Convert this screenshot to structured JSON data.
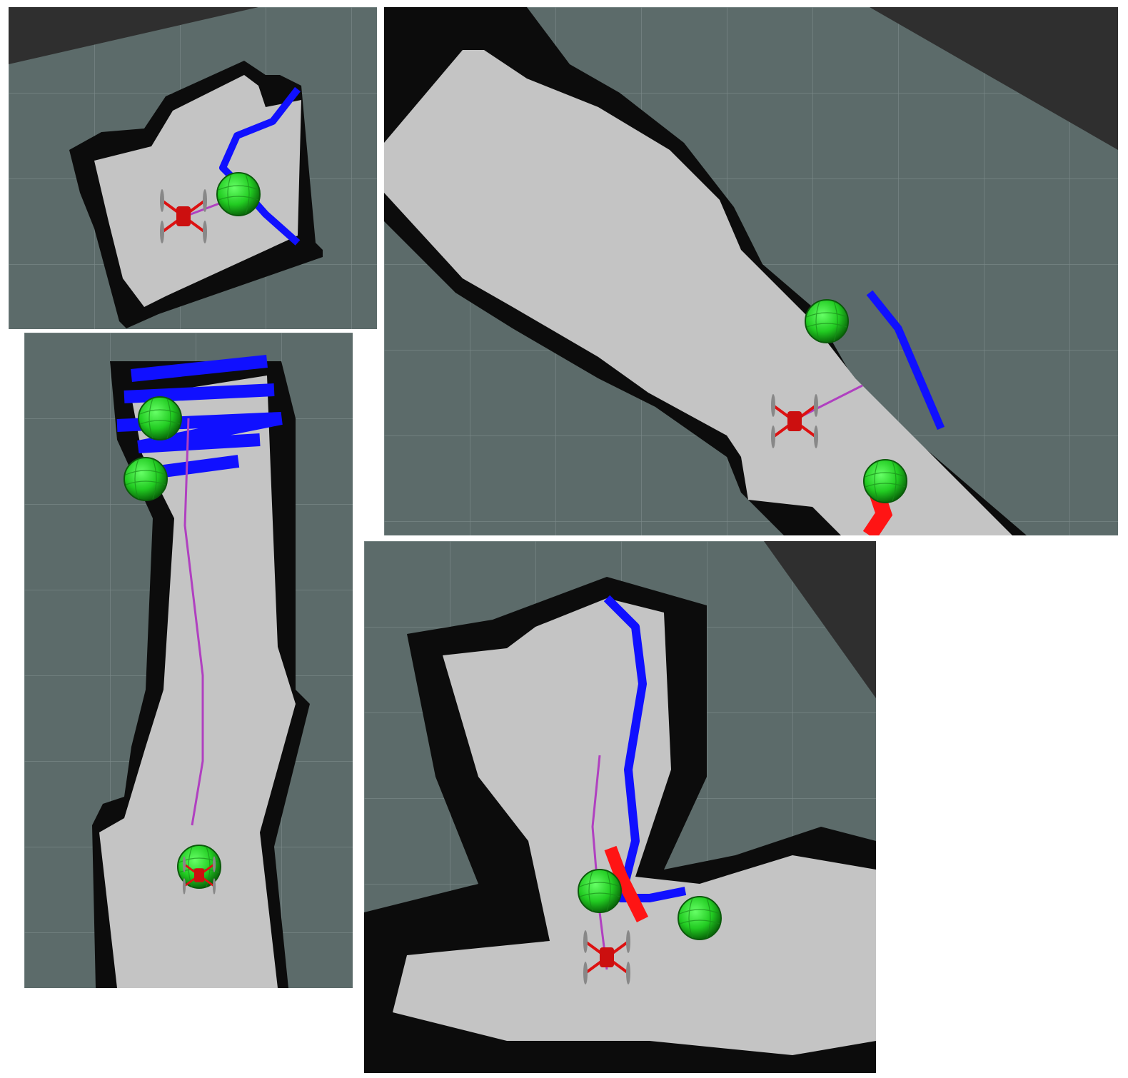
{
  "colors": {
    "background": "#2f2f2f",
    "unknown_space": "#5c6b6a",
    "free_space": "#c4c4c4",
    "occupied": "#0c0c0c",
    "grid_line": "#8a9897",
    "frontier": "#1010ff",
    "frontier_recent": "#ff1414",
    "planned_path": "#b040c0",
    "goal_marker": "#22dd22",
    "drone": "#dd1111"
  },
  "panels": [
    {
      "id": "panel-a",
      "content": [
        "occupancy-grid",
        "frontier-cells",
        "goal-sphere",
        "drone",
        "planned-path"
      ]
    },
    {
      "id": "panel-b",
      "content": [
        "occupancy-grid",
        "frontier-cells",
        "goal-sphere",
        "drone",
        "planned-path"
      ]
    },
    {
      "id": "panel-c",
      "content": [
        "occupancy-grid",
        "frontier-cells",
        "goal-sphere",
        "drone",
        "planned-path"
      ]
    },
    {
      "id": "panel-d",
      "content": [
        "occupancy-grid",
        "frontier-cells",
        "goal-sphere",
        "drone",
        "planned-path"
      ]
    }
  ],
  "icons": {
    "goal": "sphere-icon",
    "robot": "quadcopter-icon"
  }
}
